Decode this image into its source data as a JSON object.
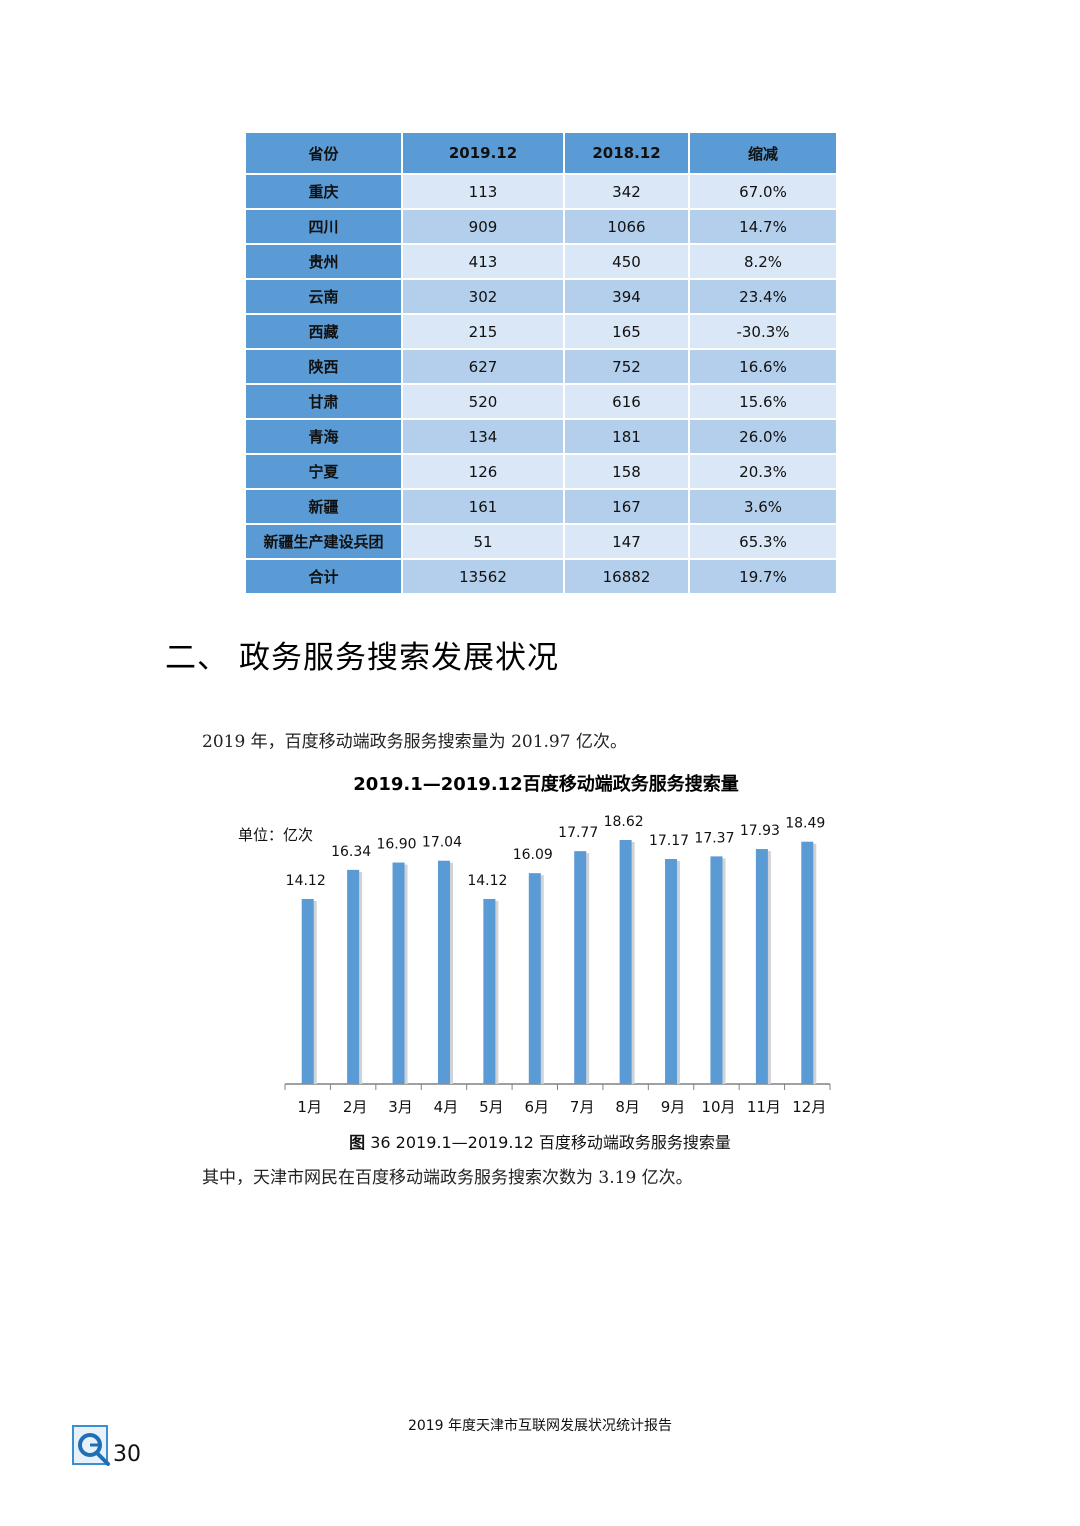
{
  "table": {
    "headers": [
      "省份",
      "2019.12",
      "2018.12",
      "缩减"
    ],
    "rows": [
      [
        "重庆",
        "113",
        "342",
        "67.0%"
      ],
      [
        "四川",
        "909",
        "1066",
        "14.7%"
      ],
      [
        "贵州",
        "413",
        "450",
        "8.2%"
      ],
      [
        "云南",
        "302",
        "394",
        "23.4%"
      ],
      [
        "西藏",
        "215",
        "165",
        "-30.3%"
      ],
      [
        "陕西",
        "627",
        "752",
        "16.6%"
      ],
      [
        "甘肃",
        "520",
        "616",
        "15.6%"
      ],
      [
        "青海",
        "134",
        "181",
        "26.0%"
      ],
      [
        "宁夏",
        "126",
        "158",
        "20.3%"
      ],
      [
        "新疆",
        "161",
        "167",
        "3.6%"
      ],
      [
        "新疆生产建设兵团",
        "51",
        "147",
        "65.3%"
      ],
      [
        "合计",
        "13562",
        "16882",
        "19.7%"
      ]
    ]
  },
  "section": {
    "number": "二、",
    "title": "政务服务搜索发展状况"
  },
  "text": {
    "intro": "2019 年，百度移动端政务服务搜索量为 201.97 亿次。",
    "note": "其中，天津市网民在百度移动端政务服务搜索次数为 3.19 亿次。"
  },
  "caption": {
    "label": "图",
    "text": "36 2019.1—2019.12 百度移动端政务服务搜索量"
  },
  "footer": {
    "report_title": "2019 年度天津市互联网发展状况统计报告",
    "page_number": "30"
  },
  "colors": {
    "bar": "#5b9bd5",
    "table_header": "#5b9bd5",
    "row_light": "#d9e7f6",
    "row_dark": "#b4cfeb"
  },
  "chart_data": {
    "type": "bar",
    "title": "2019.1—2019.12百度移动端政务服务搜索量",
    "unit_label": "单位：亿次",
    "categories": [
      "1月",
      "2月",
      "3月",
      "4月",
      "5月",
      "6月",
      "7月",
      "8月",
      "9月",
      "10月",
      "11月",
      "12月"
    ],
    "values": [
      14.12,
      16.34,
      16.9,
      17.04,
      14.12,
      16.09,
      17.77,
      18.62,
      17.17,
      17.37,
      17.93,
      18.49
    ],
    "value_labels": [
      "14.12",
      "16.34",
      "16.90",
      "17.04",
      "14.12",
      "16.09",
      "17.77",
      "18.62",
      "17.17",
      "17.37",
      "17.93",
      "18.49"
    ],
    "xlabel": "",
    "ylabel": "",
    "grid": false,
    "legend": "none"
  }
}
